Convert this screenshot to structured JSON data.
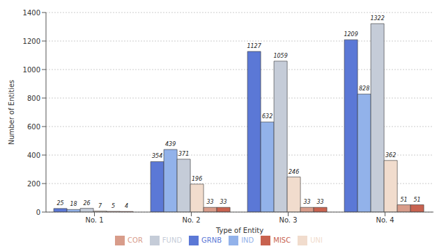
{
  "chart_data": {
    "type": "bar",
    "x_label": "Type of Entity",
    "y_label": "Number of Entities",
    "categories": [
      "No. 1",
      "No. 2",
      "No. 3",
      "No. 4"
    ],
    "series": [
      {
        "name": "GRNB",
        "color": "#5b78d6",
        "values": [
          25,
          354,
          1127,
          1209
        ]
      },
      {
        "name": "IND",
        "color": "#92b2ea",
        "values": [
          18,
          439,
          632,
          828
        ]
      },
      {
        "name": "FUND",
        "color": "#c5ccd8",
        "values": [
          26,
          371,
          1059,
          1322
        ]
      },
      {
        "name": "UNI",
        "color": "#f1dccd",
        "values": [
          7,
          196,
          246,
          362
        ]
      },
      {
        "name": "COR",
        "color": "#d89c8a",
        "values": [
          5,
          33,
          33,
          51
        ]
      },
      {
        "name": "MISC",
        "color": "#c8624f",
        "values": [
          4,
          33,
          33,
          51
        ]
      }
    ],
    "ylim": [
      0,
      1400
    ],
    "yticks": [
      0,
      200,
      400,
      600,
      800,
      1000,
      1200,
      1400
    ],
    "grid": true,
    "legend": "bottom",
    "data_labels": true
  }
}
